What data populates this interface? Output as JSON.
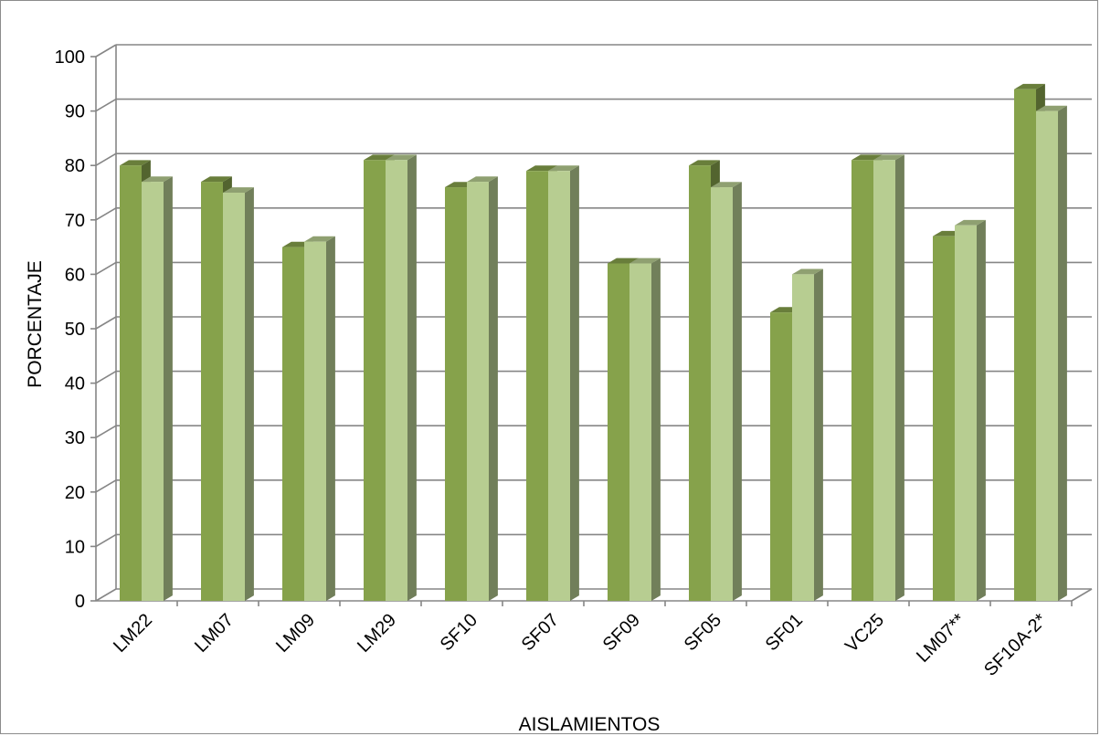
{
  "chart_data": {
    "type": "bar",
    "title": "",
    "xlabel": "AISLAMIENTOS",
    "ylabel": "PORCENTAJE",
    "ylim": [
      0,
      100
    ],
    "yticks": [
      0,
      10,
      20,
      30,
      40,
      50,
      60,
      70,
      80,
      90,
      100
    ],
    "grid": true,
    "legend": "none",
    "style": "3d-clustered-column",
    "categories": [
      "LM22",
      "LM07",
      "LM09",
      "LM29",
      "SF10",
      "SF07",
      "SF09",
      "SF05",
      "SF01",
      "VC25",
      "LM07**",
      "SF10A-2*"
    ],
    "series": [
      {
        "values": [
          80,
          77,
          65,
          81,
          76,
          79,
          62,
          80,
          53,
          81,
          67,
          94
        ],
        "color": "#86a24b"
      },
      {
        "values": [
          77,
          75,
          66,
          81,
          77,
          79,
          62,
          76,
          60,
          81,
          69,
          90
        ],
        "color": "#b7cd91"
      }
    ]
  }
}
